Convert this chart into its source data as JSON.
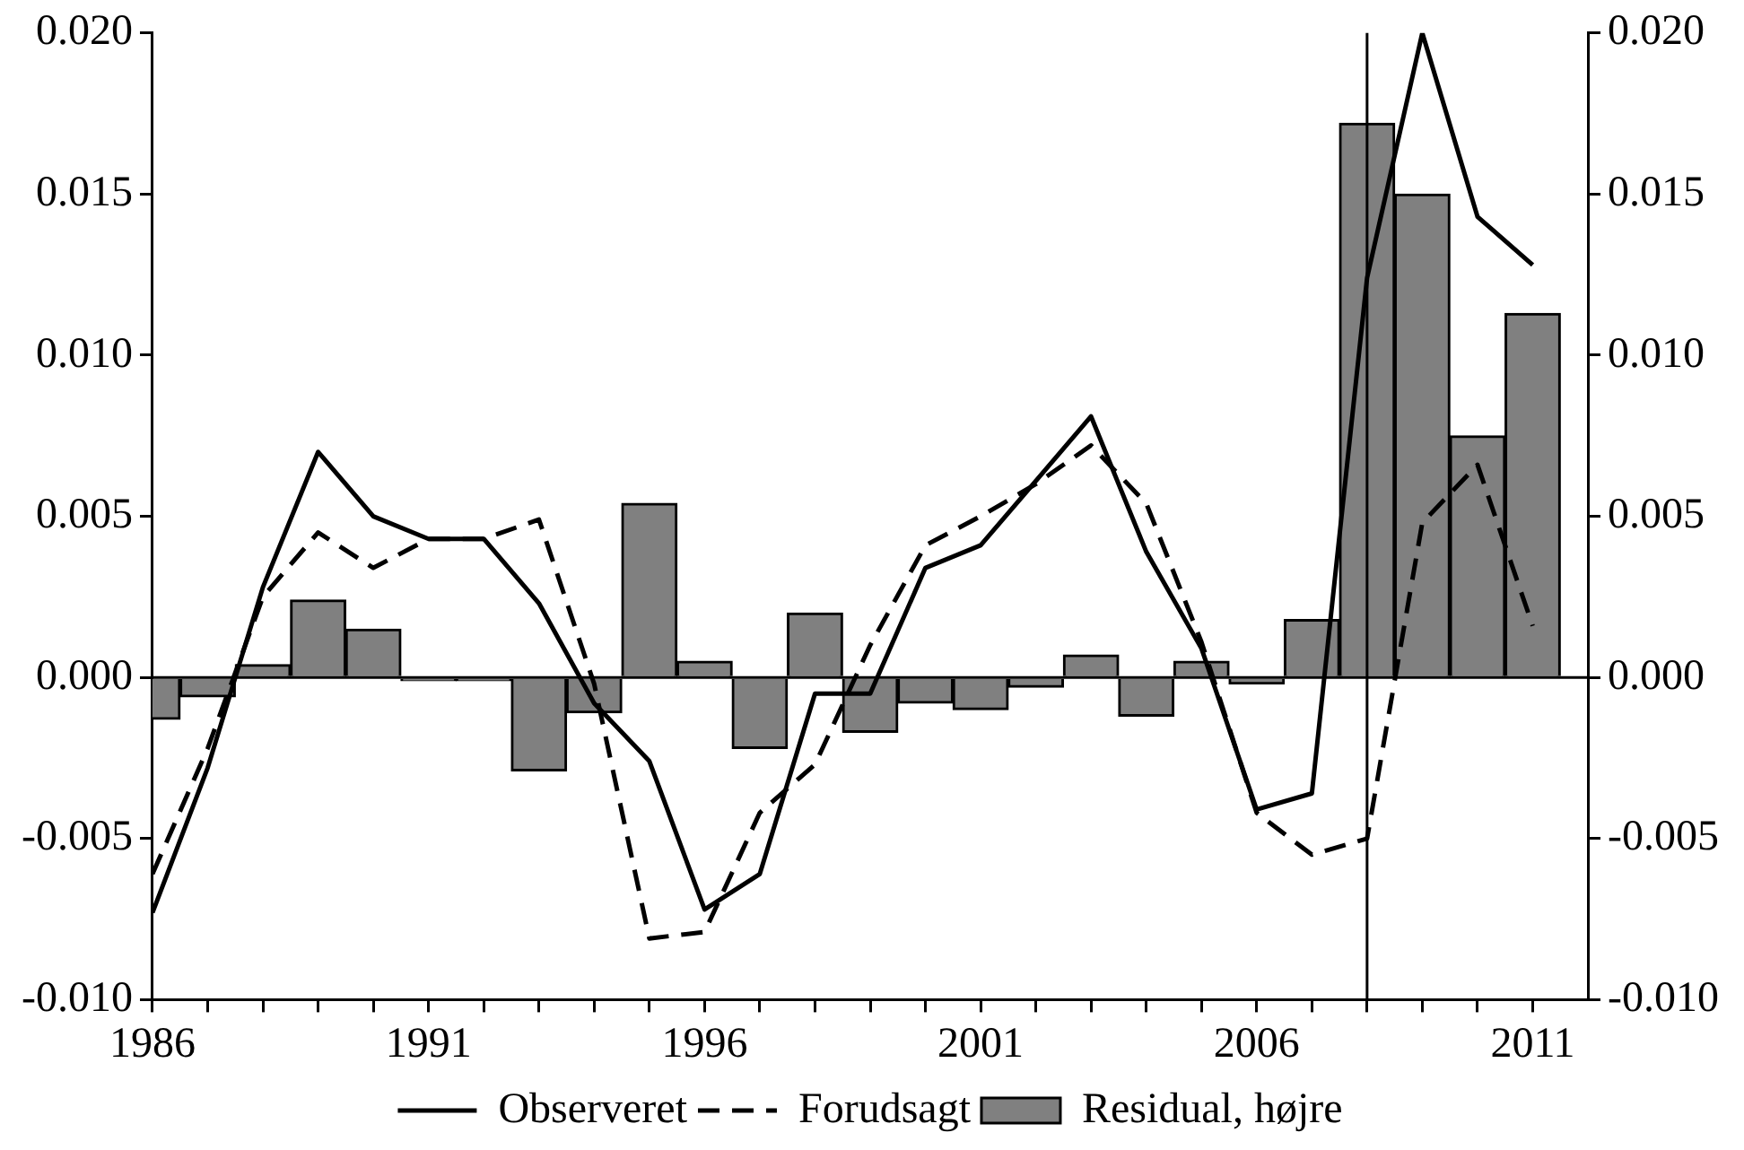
{
  "chart_data": {
    "type": "line",
    "x": [
      1986,
      1987,
      1988,
      1989,
      1990,
      1991,
      1992,
      1993,
      1994,
      1995,
      1996,
      1997,
      1998,
      1999,
      2000,
      2001,
      2002,
      2003,
      2004,
      2005,
      2006,
      2007,
      2008,
      2009,
      2010,
      2011
    ],
    "series": [
      {
        "name": "Observeret",
        "color": "#000000",
        "line_style": "solid",
        "values": [
          -0.0073,
          -0.0028,
          0.0028,
          0.007,
          0.005,
          0.0043,
          0.0043,
          0.0023,
          -0.0008,
          -0.0026,
          -0.0072,
          -0.0061,
          -0.0005,
          -0.0005,
          0.0034,
          0.0041,
          0.0061,
          0.0081,
          0.0039,
          0.0009,
          -0.0041,
          -0.0036,
          0.0124,
          0.02,
          0.0143,
          0.0128
        ]
      },
      {
        "name": "Forudsagt",
        "color": "#000000",
        "line_style": "dashed",
        "values": [
          -0.0061,
          -0.0022,
          0.0025,
          0.0045,
          0.0034,
          0.0043,
          0.0043,
          0.0049,
          -0.0002,
          -0.0081,
          -0.0079,
          -0.0042,
          -0.0027,
          0.001,
          0.0041,
          0.005,
          0.006,
          0.0072,
          0.0054,
          0.0011,
          -0.0042,
          -0.0055,
          -0.005,
          0.0048,
          0.0066,
          0.0016
        ]
      },
      {
        "name": "Residual, højre",
        "type": "bar",
        "axis": "y2",
        "color": "#808080",
        "values": [
          -0.0013,
          -0.0006,
          0.0004,
          0.0024,
          0.0015,
          -0.0001,
          -0.0001,
          -0.0029,
          -0.0011,
          0.0054,
          0.0005,
          -0.0022,
          0.002,
          -0.0017,
          -0.0008,
          -0.001,
          -0.0003,
          0.0007,
          -0.0012,
          0.0005,
          -0.0002,
          0.0018,
          0.0172,
          0.015,
          0.0075,
          0.0113
        ]
      }
    ],
    "xlim": [
      1986,
      2012
    ],
    "xticks": [
      1986,
      {
        "value": 1987,
        "label": null
      },
      {
        "value": 1988,
        "label": null
      },
      {
        "value": 1989,
        "label": null
      },
      {
        "value": 1990,
        "label": null
      },
      1991,
      {
        "value": 1992,
        "label": null
      },
      {
        "value": 1993,
        "label": null
      },
      {
        "value": 1994,
        "label": null
      },
      {
        "value": 1995,
        "label": null
      },
      1996,
      {
        "value": 1997,
        "label": null
      },
      {
        "value": 1998,
        "label": null
      },
      {
        "value": 1999,
        "label": null
      },
      {
        "value": 2000,
        "label": null
      },
      2001,
      {
        "value": 2002,
        "label": null
      },
      {
        "value": 2003,
        "label": null
      },
      {
        "value": 2004,
        "label": null
      },
      {
        "value": 2005,
        "label": null
      },
      2006,
      {
        "value": 2007,
        "label": null
      },
      {
        "value": 2008,
        "label": null
      },
      {
        "value": 2009,
        "label": null
      },
      {
        "value": 2010,
        "label": null
      },
      2011
    ],
    "ylim": [
      -0.01,
      0.02
    ],
    "yticks": [
      {
        "value": -0.01,
        "label": "-0.010"
      },
      {
        "value": -0.005,
        "label": "-0.005"
      },
      {
        "value": 0,
        "label": "0.000"
      },
      {
        "value": 0.005,
        "label": "0.005"
      },
      {
        "value": 0.01,
        "label": "0.010"
      },
      {
        "value": 0.015,
        "label": "0.015"
      },
      {
        "value": 0.02,
        "label": "0.020"
      }
    ],
    "y2lim": [
      -0.01,
      0.02
    ],
    "y2ticks": [
      {
        "value": -0.01,
        "label": "-0.010"
      },
      {
        "value": -0.005,
        "label": "-0.005"
      },
      {
        "value": 0,
        "label": "0.000"
      },
      {
        "value": 0.005,
        "label": "0.005"
      },
      {
        "value": 0.01,
        "label": "0.010"
      },
      {
        "value": 0.015,
        "label": "0.015"
      },
      {
        "value": 0.02,
        "label": "0.020"
      }
    ],
    "ref_lines": [
      {
        "axis": "y",
        "value": 0,
        "color": "#000000"
      },
      {
        "axis": "x",
        "value": 2008,
        "color": "#000000"
      }
    ],
    "legend": "bottom"
  }
}
